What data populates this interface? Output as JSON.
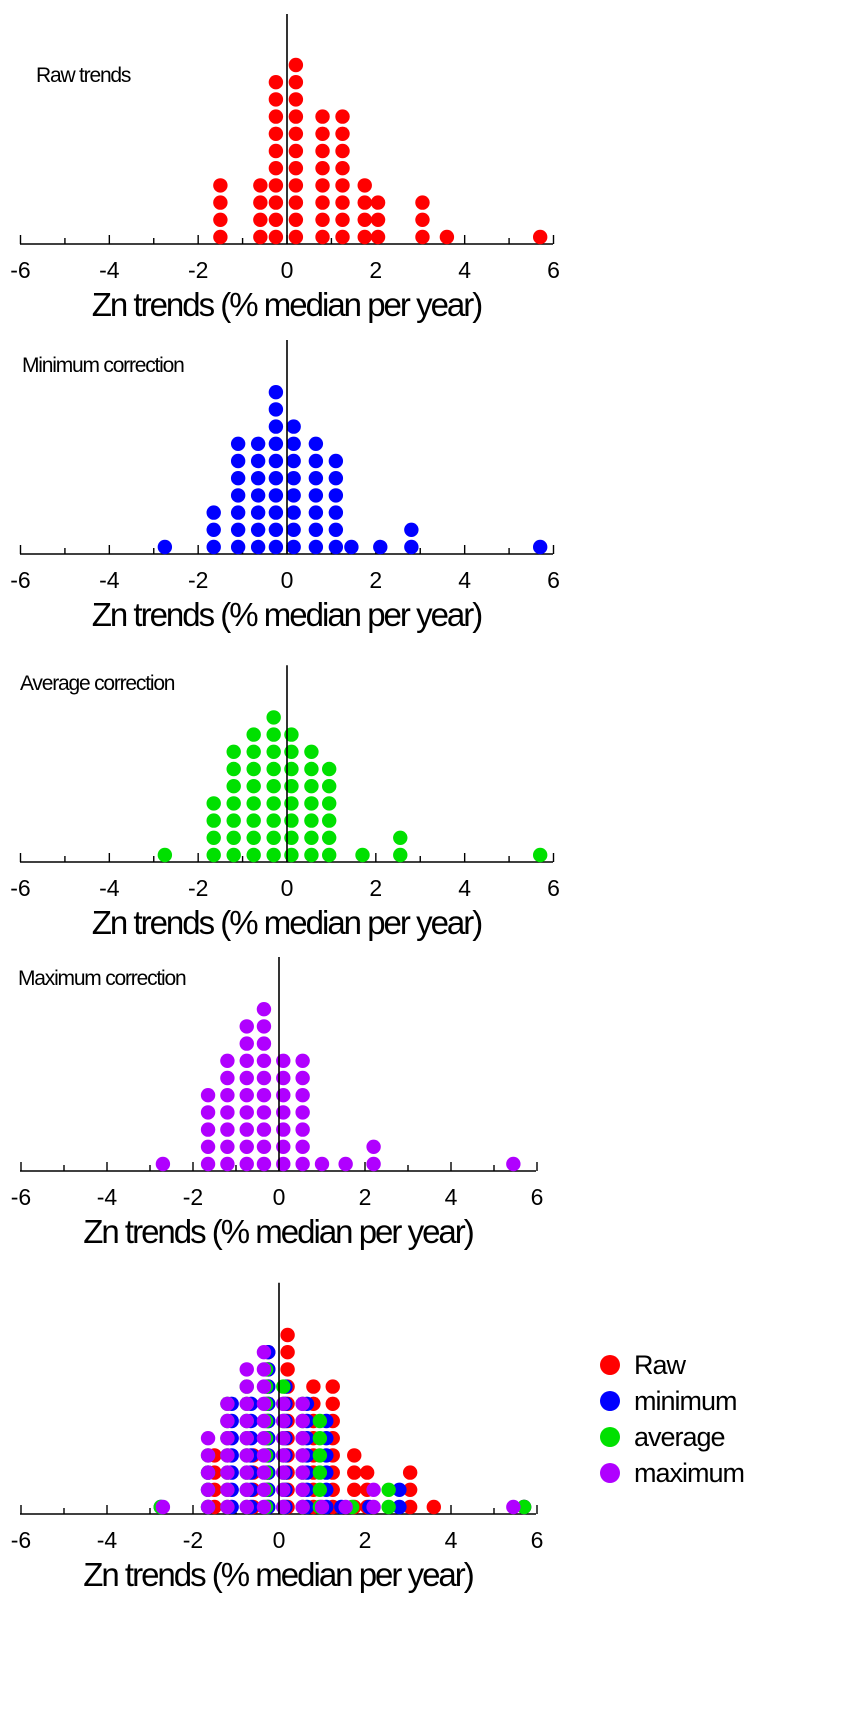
{
  "colors": {
    "raw": "#ff0000",
    "minimum": "#0000ff",
    "average": "#00e000",
    "maximum": "#b000ff"
  },
  "chart_data": [
    {
      "type": "scatter",
      "title": "Raw trends",
      "xlabel": "Zn trends (% median per year)",
      "xlim": [
        -6,
        6
      ],
      "xticks": [
        "-6",
        "-4",
        "-2",
        "0",
        "2",
        "4",
        "6"
      ],
      "series": [
        {
          "key": "raw",
          "stacks": [
            [
              -1.5,
              4
            ],
            [
              -0.6,
              4
            ],
            [
              -0.25,
              10
            ],
            [
              0.2,
              11
            ],
            [
              0.8,
              8
            ],
            [
              1.25,
              8
            ],
            [
              1.75,
              4
            ],
            [
              2.05,
              3
            ],
            [
              3.05,
              3
            ],
            [
              3.6,
              1
            ],
            [
              5.7,
              1
            ]
          ]
        }
      ]
    },
    {
      "type": "scatter",
      "title": "Minimum correction",
      "xlabel": "Zn trends (% median per year)",
      "xlim": [
        -6,
        6
      ],
      "xticks": [
        "-6",
        "-4",
        "-2",
        "0",
        "2",
        "4",
        "6"
      ],
      "series": [
        {
          "key": "minimum",
          "stacks": [
            [
              -2.75,
              1
            ],
            [
              -1.65,
              3
            ],
            [
              -1.1,
              7
            ],
            [
              -0.65,
              7
            ],
            [
              -0.25,
              10
            ],
            [
              0.15,
              8
            ],
            [
              0.65,
              7
            ],
            [
              1.1,
              6
            ],
            [
              1.45,
              1
            ],
            [
              2.1,
              1
            ],
            [
              2.8,
              2
            ],
            [
              5.7,
              1
            ]
          ]
        }
      ]
    },
    {
      "type": "scatter",
      "title": "Average correction",
      "xlabel": "Zn trends (% median per year)",
      "xlim": [
        -6,
        6
      ],
      "xticks": [
        "-6",
        "-4",
        "-2",
        "0",
        "2",
        "4",
        "6"
      ],
      "series": [
        {
          "key": "average",
          "stacks": [
            [
              -2.75,
              1
            ],
            [
              -1.65,
              4
            ],
            [
              -1.2,
              7
            ],
            [
              -0.75,
              8
            ],
            [
              -0.3,
              9
            ],
            [
              0.1,
              8
            ],
            [
              0.55,
              7
            ],
            [
              0.95,
              6
            ],
            [
              1.7,
              1
            ],
            [
              2.55,
              2
            ],
            [
              5.7,
              1
            ]
          ]
        }
      ]
    },
    {
      "type": "scatter",
      "title": "Maximum correction",
      "xlabel": "Zn trends (% median per year)",
      "xlim": [
        -6,
        6
      ],
      "xticks": [
        "-6",
        "-4",
        "-2",
        "0",
        "2",
        "4",
        "6"
      ],
      "series": [
        {
          "key": "maximum",
          "stacks": [
            [
              -2.7,
              1
            ],
            [
              -1.65,
              5
            ],
            [
              -1.2,
              7
            ],
            [
              -0.75,
              9
            ],
            [
              -0.35,
              10
            ],
            [
              0.1,
              7
            ],
            [
              0.55,
              7
            ],
            [
              1.0,
              1
            ],
            [
              1.55,
              1
            ],
            [
              2.2,
              2
            ],
            [
              5.45,
              1
            ]
          ]
        }
      ]
    },
    {
      "type": "scatter",
      "title": "",
      "xlabel": "Zn trends (% median per year)",
      "xlim": [
        -6,
        6
      ],
      "xticks": [
        "-6",
        "-4",
        "-2",
        "0",
        "2",
        "4",
        "6"
      ],
      "legend_position": "right",
      "legend": [
        {
          "key": "raw",
          "label": "Raw"
        },
        {
          "key": "minimum",
          "label": "minimum"
        },
        {
          "key": "average",
          "label": "average"
        },
        {
          "key": "maximum",
          "label": "maximum"
        }
      ],
      "series": [
        {
          "key": "raw",
          "stacks": [
            [
              -1.5,
              4
            ],
            [
              -0.6,
              4
            ],
            [
              -0.25,
              10
            ],
            [
              0.2,
              11
            ],
            [
              0.8,
              8
            ],
            [
              1.25,
              8
            ],
            [
              1.75,
              4
            ],
            [
              2.05,
              3
            ],
            [
              3.05,
              3
            ],
            [
              3.6,
              1
            ],
            [
              5.7,
              1
            ]
          ]
        },
        {
          "key": "minimum",
          "stacks": [
            [
              -2.75,
              1
            ],
            [
              -1.65,
              3
            ],
            [
              -1.1,
              7
            ],
            [
              -0.65,
              7
            ],
            [
              -0.25,
              10
            ],
            [
              0.15,
              8
            ],
            [
              0.65,
              7
            ],
            [
              1.1,
              6
            ],
            [
              1.45,
              1
            ],
            [
              2.1,
              1
            ],
            [
              2.8,
              2
            ],
            [
              5.7,
              1
            ]
          ]
        },
        {
          "key": "average",
          "stacks": [
            [
              -2.75,
              1
            ],
            [
              -1.65,
              4
            ],
            [
              -1.2,
              7
            ],
            [
              -0.75,
              8
            ],
            [
              -0.3,
              9
            ],
            [
              0.1,
              8
            ],
            [
              0.55,
              7
            ],
            [
              0.95,
              6
            ],
            [
              1.7,
              1
            ],
            [
              2.55,
              2
            ],
            [
              5.7,
              1
            ]
          ]
        },
        {
          "key": "maximum",
          "stacks": [
            [
              -2.7,
              1
            ],
            [
              -1.65,
              5
            ],
            [
              -1.2,
              7
            ],
            [
              -0.75,
              9
            ],
            [
              -0.35,
              10
            ],
            [
              0.1,
              7
            ],
            [
              0.55,
              7
            ],
            [
              1.0,
              1
            ],
            [
              1.55,
              1
            ],
            [
              2.2,
              2
            ],
            [
              5.45,
              1
            ]
          ]
        }
      ]
    }
  ]
}
